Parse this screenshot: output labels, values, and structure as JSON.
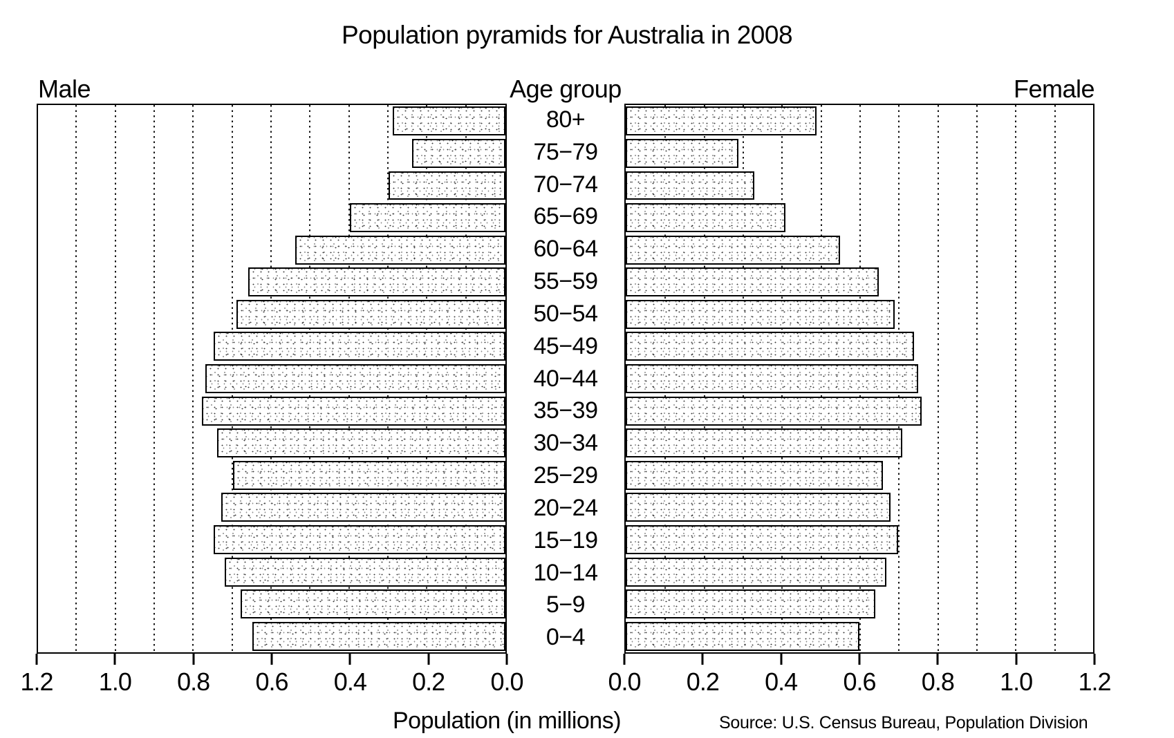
{
  "title": "Population pyramids for Australia in 2008",
  "header": {
    "left": "Male",
    "center": "Age group",
    "right": "Female"
  },
  "axis": {
    "xlabel": "Population (in millions)",
    "source": "Source: U.S. Census Bureau, Population Division",
    "left_ticks": [
      "1.2",
      "1.0",
      "0.8",
      "0.6",
      "0.4",
      "0.2",
      "0.0"
    ],
    "right_ticks": [
      "0.0",
      "0.2",
      "0.4",
      "0.6",
      "0.8",
      "1.0",
      "1.2"
    ]
  },
  "chart_data": {
    "type": "bar",
    "variant": "population-pyramid",
    "title": "Population pyramids for Australia in 2008",
    "xlabel": "Population (in millions)",
    "source_note": "Source: U.S. Census Bureau, Population Division",
    "categories": [
      "80+",
      "75−79",
      "70−74",
      "65−69",
      "60−64",
      "55−59",
      "50−54",
      "45−49",
      "40−44",
      "35−39",
      "30−34",
      "25−29",
      "20−24",
      "15−19",
      "10−14",
      "5−9",
      "0−4"
    ],
    "series": [
      {
        "name": "Male",
        "side": "left",
        "values": [
          0.29,
          0.24,
          0.3,
          0.4,
          0.54,
          0.66,
          0.69,
          0.75,
          0.77,
          0.78,
          0.74,
          0.7,
          0.73,
          0.75,
          0.72,
          0.68,
          0.65
        ]
      },
      {
        "name": "Female",
        "side": "right",
        "values": [
          0.49,
          0.29,
          0.33,
          0.41,
          0.55,
          0.65,
          0.69,
          0.74,
          0.75,
          0.76,
          0.71,
          0.66,
          0.68,
          0.7,
          0.67,
          0.64,
          0.6
        ]
      }
    ],
    "xlim": [
      0,
      1.2
    ],
    "gridline_interval": 0.1,
    "tick_interval": 0.2,
    "grid_style": "dotted-vertical",
    "legend_position": "none",
    "colors": {
      "background": "#ffffff",
      "bar_fill": "#ffffff",
      "bar_stipple": "#3a3a3a",
      "bar_border": "#000000",
      "text": "#000000",
      "gridline": "#141414"
    }
  }
}
